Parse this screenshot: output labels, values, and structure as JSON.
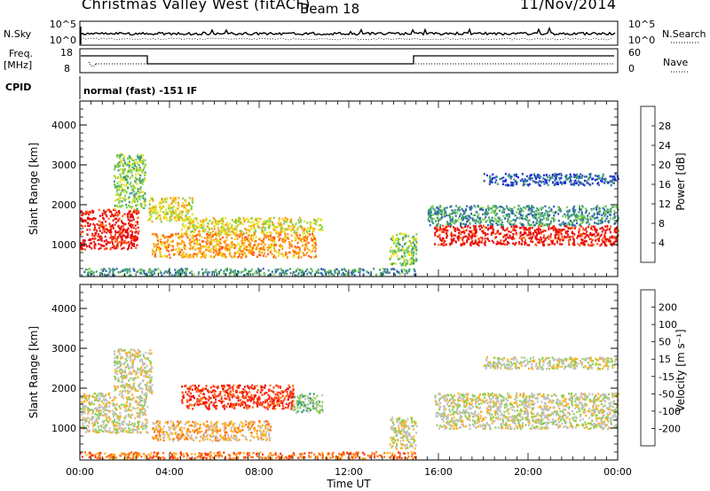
{
  "header": {
    "title": "Christmas Valley West (fitACF)",
    "beam": "Beam 18",
    "date": "11/Nov/2014"
  },
  "top_panels": {
    "nsky_label": "N.Sky",
    "nsky_ticks": [
      "10^5",
      "10^0"
    ],
    "nsearch_label": "N.Search",
    "nsearch_ticks": [
      "10^5",
      "10^0"
    ],
    "freq_label": "Freq.",
    "freq_unit": "[MHz]",
    "freq_ticks": [
      "18",
      "8"
    ],
    "nave_label": "Nave",
    "nave_ticks": [
      "60",
      "0"
    ],
    "cpid_label": "CPID",
    "cpid_value": "normal (fast) -151 IF"
  },
  "chart_data": [
    {
      "type": "heatmap",
      "panel": "power",
      "ylabel": "Slant Range [km]",
      "ylim": [
        200,
        4600
      ],
      "yticks": [
        1000,
        2000,
        3000,
        4000
      ],
      "xlim": [
        0,
        24
      ],
      "xtick_labels": [
        "00:00",
        "04:00",
        "08:00",
        "12:00",
        "16:00",
        "20:00",
        "00:00"
      ],
      "colorbar_label": "Power [dB]",
      "colorbar_ticks": [
        "4",
        "8",
        "12",
        "16",
        "20",
        "24",
        "28"
      ],
      "colorbar_colors": [
        "#1d24e8",
        "#2f5fae",
        "#3e9a7a",
        "#7cd050",
        "#e9e11e",
        "#ff9a10",
        "#ff5a10",
        "#e80c0c"
      ],
      "echo_regions": [
        {
          "t0": 0.0,
          "t1": 2.6,
          "r0": 900,
          "r1": 1900,
          "level": 7
        },
        {
          "t0": 1.5,
          "t1": 2.9,
          "r0": 1900,
          "r1": 3300,
          "level": 3
        },
        {
          "t0": 3.0,
          "t1": 5.0,
          "r0": 1600,
          "r1": 2200,
          "level": 4
        },
        {
          "t0": 3.2,
          "t1": 10.5,
          "r0": 700,
          "r1": 1300,
          "level": 5
        },
        {
          "t0": 4.5,
          "t1": 10.8,
          "r0": 1300,
          "r1": 1700,
          "level": 4
        },
        {
          "t0": 0.0,
          "t1": 15.0,
          "r0": 250,
          "r1": 420,
          "level": 2
        },
        {
          "t0": 13.8,
          "t1": 15.0,
          "r0": 500,
          "r1": 1300,
          "level": 3
        },
        {
          "t0": 15.8,
          "t1": 24.0,
          "r0": 1000,
          "r1": 1500,
          "level": 7
        },
        {
          "t0": 15.5,
          "t1": 24.0,
          "r0": 1500,
          "r1": 2000,
          "level": 2
        },
        {
          "t0": 18.0,
          "t1": 24.0,
          "r0": 2500,
          "r1": 2800,
          "level": 1
        }
      ]
    },
    {
      "type": "heatmap",
      "panel": "velocity",
      "ylabel": "Slant Range [km]",
      "ylim": [
        200,
        4600
      ],
      "yticks": [
        1000,
        2000,
        3000,
        4000
      ],
      "xlim": [
        0,
        24
      ],
      "xlabel": "Time UT",
      "xtick_labels": [
        "00:00",
        "04:00",
        "08:00",
        "12:00",
        "16:00",
        "20:00",
        "00:00"
      ],
      "colorbar_label": "Velocity [m s⁻¹]",
      "colorbar_ticks": [
        "200",
        "100",
        "50",
        "15",
        "-15",
        "-50",
        "-100",
        "-200"
      ],
      "colorbar_colors": [
        "#1d24e8",
        "#3060b0",
        "#3ea070",
        "#8ad050",
        "#c0c0c0",
        "#ffb020",
        "#ff7010",
        "#ff3010",
        "#e80c0c"
      ],
      "echo_regions": [
        {
          "t0": 0.0,
          "t1": 3.0,
          "r0": 900,
          "r1": 1900,
          "level": 4
        },
        {
          "t0": 1.5,
          "t1": 3.2,
          "r0": 1900,
          "r1": 3000,
          "level": 4
        },
        {
          "t0": 4.5,
          "t1": 9.5,
          "r0": 1500,
          "r1": 2100,
          "level": 7
        },
        {
          "t0": 9.5,
          "t1": 10.8,
          "r0": 1400,
          "r1": 1900,
          "level": 3
        },
        {
          "t0": 3.2,
          "t1": 8.5,
          "r0": 700,
          "r1": 1200,
          "level": 5
        },
        {
          "t0": 0.0,
          "t1": 15.0,
          "r0": 250,
          "r1": 420,
          "level": 6
        },
        {
          "t0": 13.8,
          "t1": 15.0,
          "r0": 500,
          "r1": 1300,
          "level": 4
        },
        {
          "t0": 15.8,
          "t1": 24.0,
          "r0": 1000,
          "r1": 1900,
          "level": 4
        },
        {
          "t0": 18.0,
          "t1": 24.0,
          "r0": 2500,
          "r1": 2800,
          "level": 4
        }
      ]
    }
  ]
}
